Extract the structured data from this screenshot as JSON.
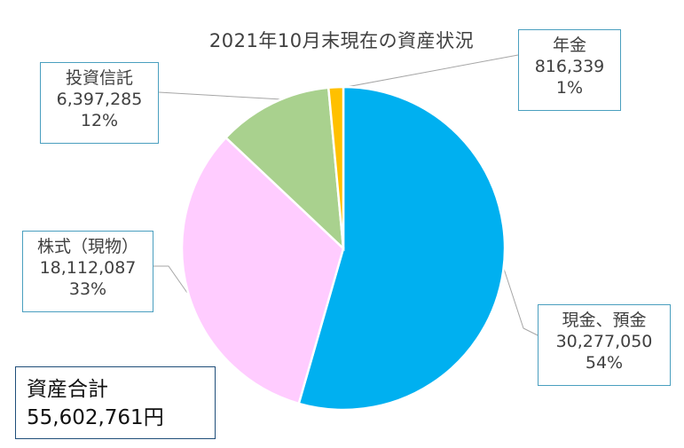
{
  "chart_data": {
    "type": "pie",
    "title": "2021年10月末現在の資産状況",
    "slices": [
      {
        "label": "現金、預金",
        "value": 30277050,
        "value_text": "30,277,050",
        "percent": "54%",
        "color": "#00b0f0"
      },
      {
        "label": "株式（現物）",
        "value": 18112087,
        "value_text": "18,112,087",
        "percent": "33%",
        "color": "#ffccff"
      },
      {
        "label": "投資信託",
        "value": 6397285,
        "value_text": "6,397,285",
        "percent": "12%",
        "color": "#a9d18e"
      },
      {
        "label": "年金",
        "value": 816339,
        "value_text": "816,339",
        "percent": "1%",
        "color": "#ffc000"
      }
    ],
    "start_angle_deg": 0,
    "direction": "clockwise"
  },
  "total": {
    "label": "資産合計",
    "value": "55,602,761円"
  }
}
